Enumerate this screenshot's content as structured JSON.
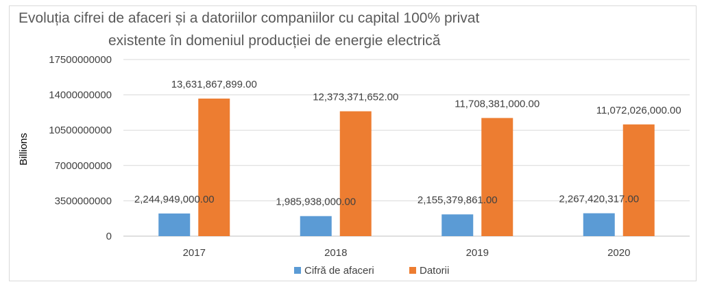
{
  "chart_data": {
    "type": "bar",
    "title_lines": [
      "Evoluția cifrei de afaceri și a datoriilor companiilor cu capital 100% privat",
      "existente în domeniul producției de energie electrică"
    ],
    "ylabel": "Billions",
    "xlabel": "",
    "ylim": [
      0,
      17500000000
    ],
    "y_ticks": [
      0,
      3500000000,
      7000000000,
      10500000000,
      14000000000,
      17500000000
    ],
    "y_tick_labels": [
      "0",
      "3500000000",
      "7000000000",
      "10500000000",
      "14000000000",
      "17500000000"
    ],
    "grid": true,
    "legend_position": "bottom",
    "categories": [
      "2017",
      "2018",
      "2019",
      "2020"
    ],
    "series": [
      {
        "name": "Cifră de afaceri",
        "color": "#5b9bd5",
        "values": [
          2244949000,
          1985938000,
          2155379861,
          2267420317
        ],
        "labels": [
          "2,244,949,000.00",
          "1,985,938,000.00",
          "2,155,379,861.00",
          "2,267,420,317.00"
        ]
      },
      {
        "name": "Datorii",
        "color": "#ed7d31",
        "values": [
          13631867899,
          12373371652,
          11708381000,
          11072026000
        ],
        "labels": [
          "13,631,867,899.00",
          "12,373,371,652.00",
          "11,708,381,000.00",
          "11,072,026,000.00"
        ]
      }
    ]
  }
}
